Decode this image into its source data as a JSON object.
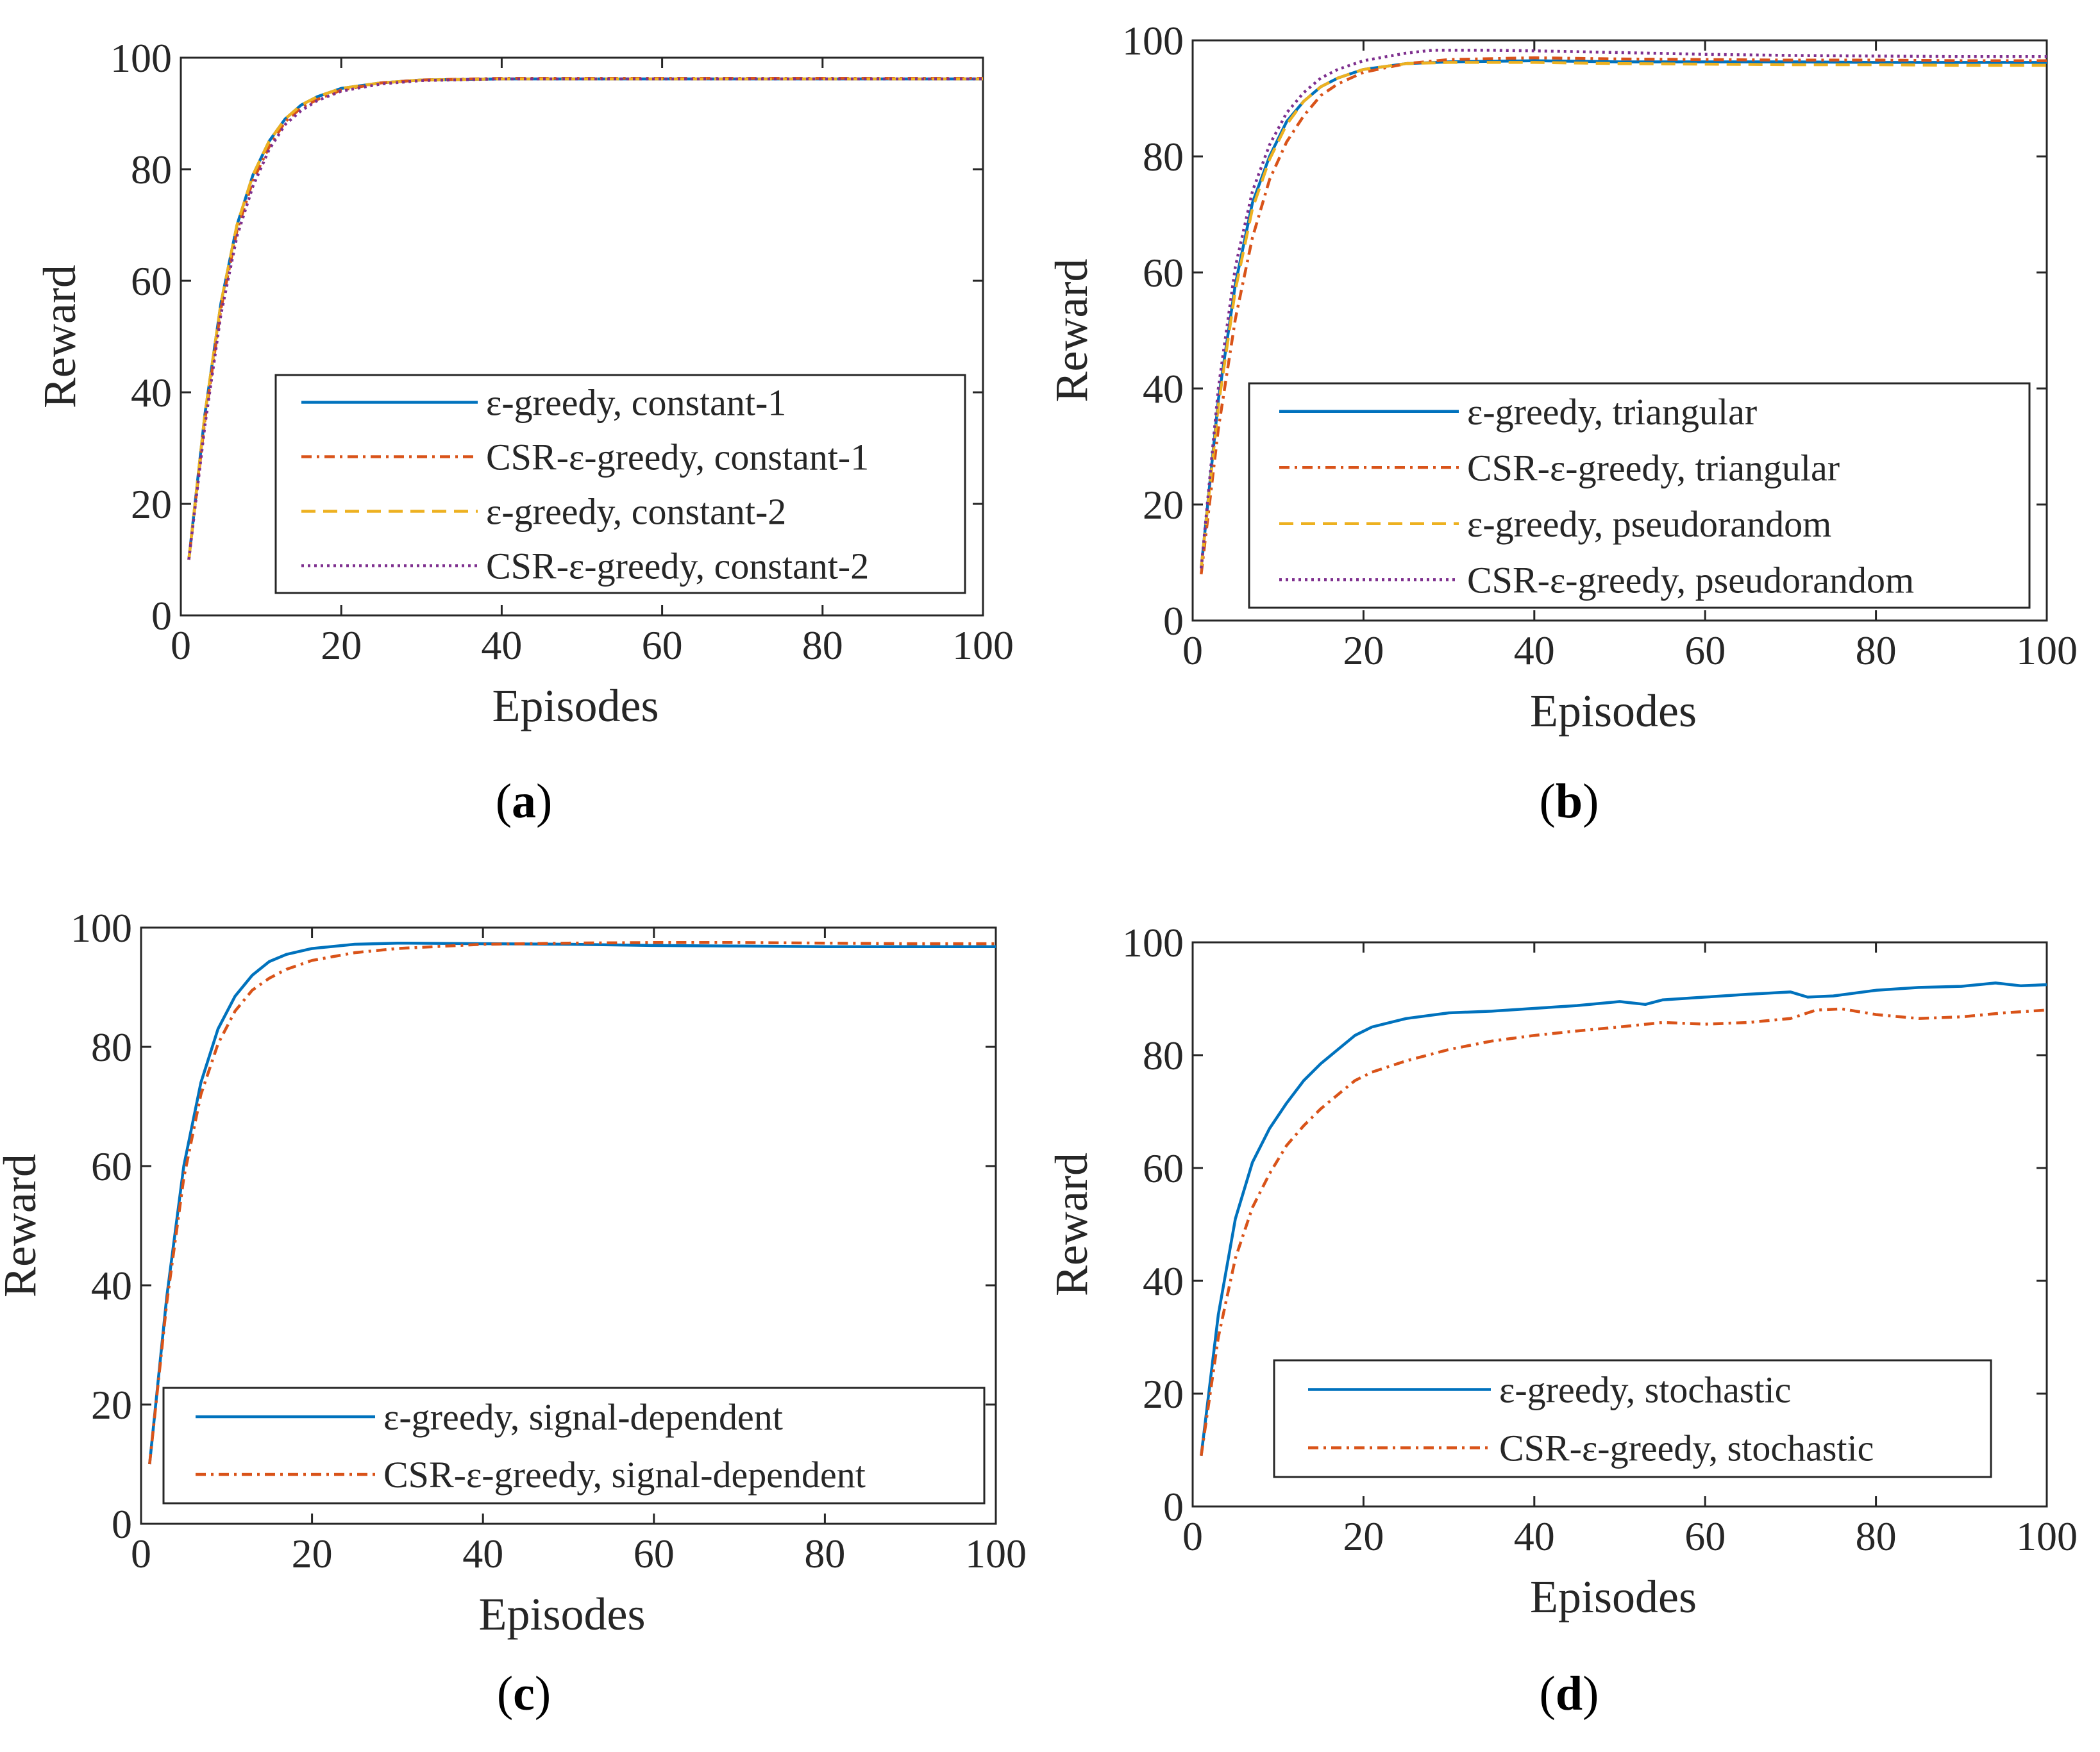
{
  "chart_data": [
    {
      "type": "line",
      "panel_label": "a",
      "xlabel": "Episodes",
      "ylabel": "Reward",
      "xlim": [
        0,
        100
      ],
      "ylim": [
        0,
        100
      ],
      "xticks": [
        0,
        20,
        40,
        60,
        80,
        100
      ],
      "yticks": [
        0,
        20,
        40,
        60,
        80,
        100
      ],
      "legend_position": "bottom-right",
      "series": [
        {
          "name": "ε-greedy, constant-1",
          "color": "#0072BD",
          "style": "solid",
          "x": [
            1,
            3,
            5,
            7,
            9,
            11,
            13,
            15,
            17,
            20,
            25,
            30,
            40,
            50,
            60,
            70,
            80,
            90,
            100
          ],
          "y": [
            10,
            36,
            56,
            70,
            79,
            85,
            89,
            91.5,
            93,
            94.5,
            95.5,
            96,
            96.2,
            96.2,
            96.2,
            96.2,
            96.2,
            96.2,
            96.2
          ]
        },
        {
          "name": "CSR-ε-greedy, constant-1",
          "color": "#D95319",
          "style": "dashdot",
          "x": [
            1,
            3,
            5,
            7,
            9,
            11,
            13,
            15,
            17,
            20,
            25,
            30,
            40,
            50,
            60,
            70,
            80,
            90,
            100
          ],
          "y": [
            10,
            35,
            55,
            69,
            78,
            84,
            88.5,
            91,
            92.5,
            94.2,
            95.5,
            96,
            96.3,
            96.3,
            96.3,
            96.3,
            96.3,
            96.3,
            96.3
          ]
        },
        {
          "name": "ε-greedy, constant-2",
          "color": "#EDB120",
          "style": "dashed",
          "x": [
            1,
            3,
            5,
            7,
            9,
            11,
            13,
            15,
            17,
            20,
            25,
            30,
            40,
            50,
            60,
            70,
            80,
            90,
            100
          ],
          "y": [
            10,
            36,
            56,
            70,
            79,
            85,
            89,
            91.5,
            93,
            94.5,
            95.5,
            96,
            96.2,
            96.2,
            96.2,
            96.2,
            96.2,
            96.2,
            96.2
          ]
        },
        {
          "name": "CSR-ε-greedy, constant-2",
          "color": "#7E2F8E",
          "style": "dotted",
          "x": [
            1,
            3,
            5,
            7,
            9,
            11,
            13,
            15,
            17,
            20,
            25,
            30,
            40,
            50,
            60,
            70,
            80,
            90,
            100
          ],
          "y": [
            10,
            34,
            54,
            68,
            77,
            83.5,
            88,
            90.5,
            92.3,
            94,
            95.3,
            95.9,
            96.2,
            96.2,
            96.2,
            96.2,
            96.2,
            96.2,
            96.2
          ]
        }
      ]
    },
    {
      "type": "line",
      "panel_label": "b",
      "xlabel": "Episodes",
      "ylabel": "Reward",
      "xlim": [
        0,
        100
      ],
      "ylim": [
        0,
        100
      ],
      "xticks": [
        0,
        20,
        40,
        60,
        80,
        100
      ],
      "yticks": [
        0,
        20,
        40,
        60,
        80,
        100
      ],
      "legend_position": "bottom-right",
      "series": [
        {
          "name": "ε-greedy, triangular",
          "color": "#0072BD",
          "style": "solid",
          "x": [
            1,
            3,
            5,
            7,
            9,
            11,
            13,
            15,
            17,
            20,
            25,
            30,
            40,
            50,
            60,
            70,
            80,
            90,
            100
          ],
          "y": [
            9,
            38,
            58,
            72,
            80,
            86,
            89.5,
            92,
            93.5,
            95,
            96,
            96.3,
            96.5,
            96.3,
            96.3,
            96.3,
            96.2,
            96.2,
            96.2
          ]
        },
        {
          "name": "CSR-ε-greedy, triangular",
          "color": "#D95319",
          "style": "dashdot",
          "x": [
            1,
            3,
            5,
            7,
            9,
            11,
            13,
            15,
            17,
            20,
            25,
            30,
            40,
            50,
            60,
            70,
            80,
            90,
            100
          ],
          "y": [
            8,
            33,
            52,
            66,
            76,
            82.5,
            87,
            90.5,
            92.5,
            94.5,
            96,
            96.7,
            97,
            96.8,
            96.7,
            96.6,
            96.6,
            96.5,
            96.5
          ]
        },
        {
          "name": "ε-greedy, pseudorandom",
          "color": "#EDB120",
          "style": "dashed",
          "x": [
            1,
            3,
            5,
            7,
            9,
            11,
            13,
            15,
            17,
            20,
            25,
            30,
            40,
            50,
            60,
            70,
            80,
            90,
            100
          ],
          "y": [
            9,
            37,
            57,
            71,
            79.5,
            85.5,
            89.5,
            92,
            93.5,
            95,
            96,
            96.2,
            96.2,
            96,
            95.9,
            95.8,
            95.8,
            95.7,
            95.7
          ]
        },
        {
          "name": "CSR-ε-greedy, pseudorandom",
          "color": "#7E2F8E",
          "style": "dotted",
          "x": [
            1,
            3,
            5,
            7,
            9,
            11,
            13,
            15,
            17,
            20,
            25,
            28,
            35,
            40,
            50,
            60,
            70,
            80,
            90,
            100
          ],
          "y": [
            9,
            40,
            61,
            74,
            82,
            87.5,
            91,
            93.5,
            95,
            96.5,
            97.8,
            98.3,
            98.3,
            98.2,
            97.9,
            97.6,
            97.4,
            97.3,
            97.2,
            97.2
          ]
        }
      ]
    },
    {
      "type": "line",
      "panel_label": "c",
      "xlabel": "Episodes",
      "ylabel": "Reward",
      "xlim": [
        0,
        100
      ],
      "ylim": [
        0,
        100
      ],
      "xticks": [
        0,
        20,
        40,
        60,
        80,
        100
      ],
      "yticks": [
        0,
        20,
        40,
        60,
        80,
        100
      ],
      "legend_position": "bottom-right",
      "series": [
        {
          "name": "ε-greedy, signal-dependent",
          "color": "#0072BD",
          "style": "solid",
          "x": [
            1,
            3,
            5,
            7,
            9,
            11,
            13,
            15,
            17,
            20,
            25,
            30,
            40,
            50,
            60,
            70,
            80,
            90,
            100
          ],
          "y": [
            10,
            38,
            60,
            74,
            83,
            88.5,
            92,
            94.3,
            95.5,
            96.5,
            97.2,
            97.4,
            97.3,
            97.2,
            97,
            96.9,
            96.8,
            96.8,
            96.8
          ]
        },
        {
          "name": "CSR-ε-greedy, signal-dependent",
          "color": "#D95319",
          "style": "dashdot",
          "x": [
            1,
            3,
            5,
            7,
            9,
            11,
            13,
            15,
            17,
            20,
            25,
            30,
            40,
            50,
            60,
            70,
            80,
            90,
            100
          ],
          "y": [
            10,
            37,
            58,
            72,
            80.5,
            86,
            89.5,
            91.5,
            93,
            94.5,
            95.8,
            96.5,
            97.2,
            97.4,
            97.5,
            97.5,
            97.4,
            97.3,
            97.3
          ]
        }
      ]
    },
    {
      "type": "line",
      "panel_label": "d",
      "xlabel": "Episodes",
      "ylabel": "Reward",
      "xlim": [
        0,
        100
      ],
      "ylim": [
        0,
        100
      ],
      "xticks": [
        0,
        20,
        40,
        60,
        80,
        100
      ],
      "yticks": [
        0,
        20,
        40,
        60,
        80,
        100
      ],
      "legend_position": "bottom-right",
      "series": [
        {
          "name": "ε-greedy, stochastic",
          "color": "#0072BD",
          "style": "solid",
          "x": [
            1,
            3,
            5,
            7,
            9,
            11,
            13,
            15,
            17,
            19,
            21,
            25,
            30,
            35,
            40,
            45,
            50,
            53,
            55,
            60,
            65,
            70,
            72,
            75,
            80,
            85,
            90,
            94,
            97,
            100
          ],
          "y": [
            9,
            34,
            51,
            61,
            67,
            71.5,
            75.5,
            78.5,
            81,
            83.5,
            85,
            86.5,
            87.5,
            87.8,
            88.3,
            88.8,
            89.5,
            89,
            89.8,
            90.3,
            90.8,
            91.2,
            90.3,
            90.5,
            91.5,
            92,
            92.2,
            92.8,
            92.3,
            92.5
          ]
        },
        {
          "name": "CSR-ε-greedy, stochastic",
          "color": "#D95319",
          "style": "dashdot",
          "x": [
            1,
            3,
            5,
            7,
            9,
            11,
            13,
            15,
            17,
            19,
            21,
            25,
            30,
            35,
            40,
            45,
            50,
            55,
            60,
            65,
            70,
            73,
            76,
            80,
            85,
            90,
            95,
            100
          ],
          "y": [
            9,
            30,
            44,
            53,
            59,
            64,
            67.5,
            70.5,
            73,
            75.5,
            77,
            79,
            81,
            82.5,
            83.5,
            84.3,
            85,
            85.8,
            85.5,
            85.8,
            86.5,
            88,
            88.2,
            87.2,
            86.5,
            86.8,
            87.5,
            88
          ]
        }
      ]
    }
  ],
  "captions": [
    "(a)",
    "(b)",
    "(c)",
    "(d)"
  ]
}
